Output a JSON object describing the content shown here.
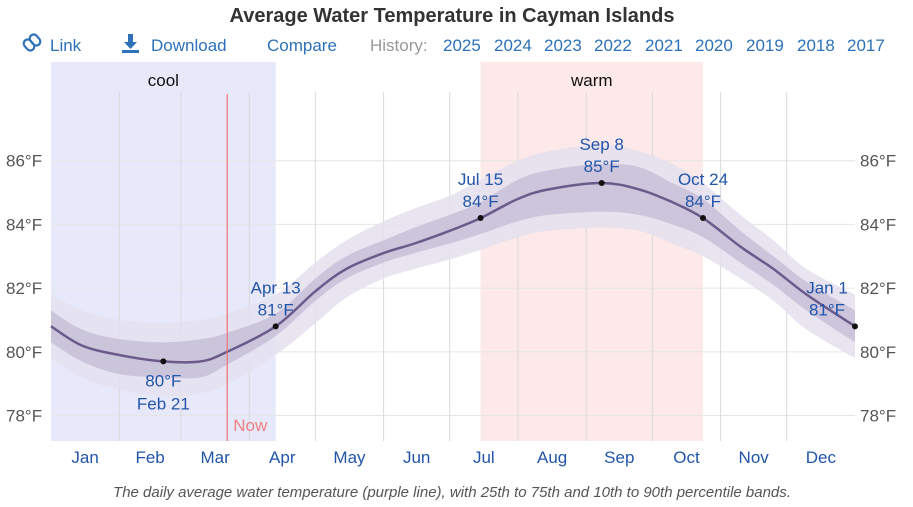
{
  "title": "Average Water Temperature in Cayman Islands",
  "toolbar": {
    "link_label": "Link",
    "download_label": "Download",
    "compare_label": "Compare",
    "history_label": "History:",
    "years": [
      "2025",
      "2024",
      "2023",
      "2022",
      "2021",
      "2020",
      "2019",
      "2018",
      "2017"
    ]
  },
  "caption": "The daily average water temperature (purple line), with 25th to 75th and 10th to 90th percentile bands.",
  "colors": {
    "line": "#6b5b8c",
    "band_inner": "#c7bfd8",
    "band_outer": "#e4e0ee",
    "cool": "#e8e8fb",
    "warm": "#fde9e9",
    "now": "#f07070",
    "link": "#2d72b8"
  },
  "chart_data": {
    "type": "area",
    "x_unit": "day of year",
    "ylabel_unit": "°F",
    "ylim": [
      77.2,
      89.1
    ],
    "yticks": [
      78,
      80,
      82,
      84,
      86
    ],
    "ytick_labels": [
      "78°F",
      "80°F",
      "82°F",
      "84°F",
      "86°F"
    ],
    "months": [
      "Jan",
      "Feb",
      "Mar",
      "Apr",
      "May",
      "Jun",
      "Jul",
      "Aug",
      "Sep",
      "Oct",
      "Nov",
      "Dec"
    ],
    "seasons": [
      {
        "label": "cool",
        "start": "Jan 1",
        "end": "Apr 13"
      },
      {
        "label": "warm",
        "start": "Jul 15",
        "end": "Oct 24"
      }
    ],
    "now_label": "Now",
    "now_date": "Mar 22",
    "series": [
      {
        "x": [
          "Jan 1",
          "Jan 15",
          "Feb 1",
          "Feb 21",
          "Mar 10",
          "Mar 22",
          "Apr 13",
          "May 1",
          "May 15",
          "Jun 1",
          "Jun 15",
          "Jul 1",
          "Jul 15",
          "Aug 1",
          "Aug 15",
          "Sep 8",
          "Sep 25",
          "Oct 10",
          "Oct 24",
          "Nov 10",
          "Nov 25",
          "Dec 10",
          "Dec 31"
        ],
        "mean": [
          80.8,
          80.2,
          79.9,
          79.7,
          79.7,
          80.0,
          80.8,
          81.9,
          82.6,
          83.1,
          83.4,
          83.8,
          84.2,
          84.8,
          85.1,
          85.3,
          85.1,
          84.7,
          84.2,
          83.3,
          82.6,
          81.8,
          80.8
        ],
        "p25": [
          80.3,
          79.7,
          79.3,
          79.2,
          79.2,
          79.6,
          80.5,
          81.6,
          82.3,
          82.8,
          83.1,
          83.4,
          83.7,
          84.1,
          84.3,
          84.4,
          84.3,
          84.0,
          83.6,
          82.8,
          82.1,
          81.3,
          80.3
        ],
        "p75": [
          81.3,
          80.7,
          80.4,
          80.3,
          80.4,
          80.6,
          81.2,
          82.3,
          83.0,
          83.5,
          83.9,
          84.3,
          84.7,
          85.4,
          85.7,
          85.9,
          85.8,
          85.3,
          84.8,
          83.8,
          83.0,
          82.2,
          81.3
        ],
        "p10": [
          79.8,
          79.2,
          78.8,
          78.6,
          78.7,
          79.0,
          79.9,
          80.9,
          81.7,
          82.3,
          82.6,
          82.9,
          83.2,
          83.6,
          83.8,
          83.9,
          83.8,
          83.4,
          83.0,
          82.3,
          81.6,
          80.7,
          79.8
        ],
        "p90": [
          81.8,
          81.3,
          81.0,
          80.9,
          81.0,
          81.2,
          81.8,
          82.8,
          83.5,
          84.1,
          84.5,
          84.9,
          85.4,
          86.0,
          86.3,
          86.5,
          86.3,
          85.9,
          85.3,
          84.3,
          83.5,
          82.6,
          81.8
        ]
      }
    ],
    "annotations": [
      {
        "date": "Feb 21",
        "value": "80°F",
        "label_date": "Feb 21",
        "label_value": "80°F",
        "y": 79.7,
        "position": "below"
      },
      {
        "date": "Apr 13",
        "value": "81°F",
        "label_date": "Apr 13",
        "label_value": "81°F",
        "y": 80.8,
        "position": "above"
      },
      {
        "date": "Jul 15",
        "value": "84°F",
        "label_date": "Jul 15",
        "label_value": "84°F",
        "y": 84.2,
        "position": "above"
      },
      {
        "date": "Sep 8",
        "value": "85°F",
        "label_date": "Sep 8",
        "label_value": "85°F",
        "y": 85.3,
        "position": "above"
      },
      {
        "date": "Oct 24",
        "value": "84°F",
        "label_date": "Oct 24",
        "label_value": "84°F",
        "y": 84.2,
        "position": "above"
      },
      {
        "date": "Jan 1",
        "value": "81°F",
        "label_date": "Jan 1",
        "label_value": "81°F",
        "y": 80.8,
        "position": "above-left"
      }
    ]
  }
}
